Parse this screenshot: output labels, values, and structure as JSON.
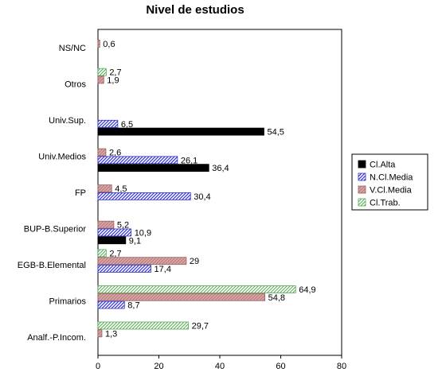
{
  "chart_data": {
    "type": "bar",
    "orientation": "horizontal",
    "title": "Nivel de estudios",
    "categories": [
      "NS/NC",
      "Otros",
      "Univ.Sup.",
      "Univ.Medios",
      "FP",
      "BUP-B.Superior",
      "EGB-B.Elemental",
      "Primarios",
      "Analf.-P.Incom."
    ],
    "series": [
      {
        "name": "Cl.Alta",
        "values": [
          null,
          null,
          54.5,
          36.4,
          null,
          9.1,
          null,
          null,
          null
        ],
        "labels": [
          "",
          "",
          "54,5",
          "36,4",
          "",
          "9,1",
          "",
          "",
          ""
        ]
      },
      {
        "name": "N.Cl.Media",
        "values": [
          null,
          null,
          6.5,
          26.1,
          30.4,
          10.9,
          17.4,
          8.7,
          null
        ],
        "labels": [
          "",
          "",
          "6,5",
          "26,1",
          "30,4",
          "10,9",
          "17,4",
          "8,7",
          ""
        ]
      },
      {
        "name": "V.Cl.Media",
        "values": [
          0.6,
          1.9,
          null,
          2.6,
          4.5,
          5.2,
          29,
          54.8,
          1.3
        ],
        "labels": [
          "0,6",
          "1,9",
          "",
          "2,6",
          "4,5",
          "5,2",
          "29",
          "54,8",
          "1,3"
        ]
      },
      {
        "name": "Cl.Trab.",
        "values": [
          null,
          2.7,
          null,
          null,
          null,
          null,
          2.7,
          64.9,
          29.7
        ],
        "labels": [
          "",
          "2,7",
          "",
          "",
          "",
          "",
          "2,7",
          "64,9",
          "29,7"
        ]
      }
    ],
    "xlim": [
      0,
      80
    ],
    "xticks": [
      0,
      20,
      40,
      60,
      80
    ],
    "grid": false,
    "legend_position": "right",
    "colors": {
      "Cl.Alta": "#000000",
      "N.Cl.Media": "#3333cc",
      "V.Cl.Media": "#cc8080",
      "Cl.Trab.": "#55aa55"
    }
  }
}
